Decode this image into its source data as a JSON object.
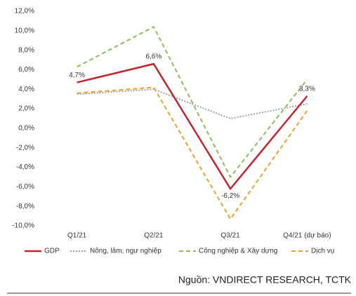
{
  "chart_data": {
    "type": "line",
    "categories": [
      "Q1/21",
      "Q2/21",
      "Q3/21",
      "Q4/21 (dự báo)"
    ],
    "series": [
      {
        "name": "GDP",
        "color": "#c0262d",
        "dash": "solid",
        "values": [
          4.7,
          6.6,
          -6.2,
          3.3
        ],
        "value_labels": [
          "4,7%",
          "6,6%",
          "-6,2%",
          "3,3%"
        ]
      },
      {
        "name": "Nông, lâm, ngư nghiệp",
        "color": "#a0a0a0",
        "dash": "dotted",
        "values": [
          3.5,
          4.0,
          1.0,
          2.5
        ]
      },
      {
        "name": "Công nghiệp & Xây dựng",
        "color": "#8fbc5a",
        "dash": "dashed",
        "values": [
          6.3,
          10.4,
          -5.0,
          5.0
        ]
      },
      {
        "name": "Dịch vụ",
        "color": "#f0a030",
        "dash": "dashed",
        "values": [
          3.6,
          4.2,
          -9.3,
          1.8
        ]
      }
    ],
    "ylim": [
      -10,
      12
    ],
    "yticks": [
      {
        "value": -10,
        "label": "-10,0%"
      },
      {
        "value": -8,
        "label": "-8,0%"
      },
      {
        "value": -6,
        "label": "-6,0%"
      },
      {
        "value": -4,
        "label": "-4,0%"
      },
      {
        "value": -2,
        "label": "-2,0%"
      },
      {
        "value": 0,
        "label": "0,0%"
      },
      {
        "value": 2,
        "label": "2,0%"
      },
      {
        "value": 4,
        "label": "4,0%"
      },
      {
        "value": 6,
        "label": "6,0%"
      },
      {
        "value": 8,
        "label": "8,0%"
      },
      {
        "value": 10,
        "label": "10,0%"
      },
      {
        "value": 12,
        "label": "12,0%"
      }
    ],
    "grid": false,
    "legend": "bottom",
    "source": "Nguồn: VNDIRECT RESEARCH, TCTK"
  }
}
